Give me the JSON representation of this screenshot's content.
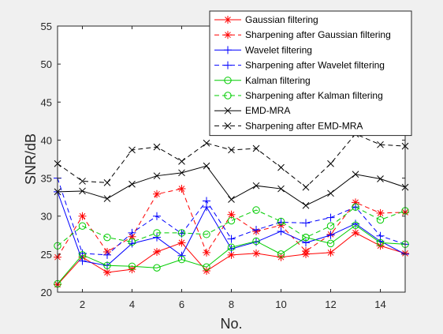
{
  "chart_data": {
    "type": "line",
    "xlabel": "No.",
    "ylabel": "SNR/dB",
    "x": [
      1,
      2,
      3,
      4,
      5,
      6,
      7,
      8,
      9,
      10,
      11,
      12,
      13,
      14,
      15
    ],
    "xlim": [
      1,
      15
    ],
    "ylim": [
      20,
      55
    ],
    "xticks": [
      2,
      4,
      6,
      8,
      10,
      12,
      14
    ],
    "yticks": [
      20,
      25,
      30,
      35,
      40,
      45,
      50,
      55
    ],
    "grid": false,
    "legend_position": "top-right",
    "series": [
      {
        "name": "Gaussian filtering",
        "color": "#ff0000",
        "marker": "asterisk",
        "dashed": false,
        "values": [
          21.0,
          24.6,
          22.6,
          23.0,
          25.3,
          26.5,
          22.8,
          24.9,
          25.1,
          24.6,
          25.0,
          25.2,
          27.8,
          26.1,
          25.1
        ]
      },
      {
        "name": "Sharpening after Gaussian filtering",
        "color": "#ff0000",
        "marker": "asterisk",
        "dashed": true,
        "values": [
          24.6,
          30.0,
          25.3,
          27.3,
          32.9,
          33.6,
          25.2,
          30.2,
          28.0,
          28.8,
          25.4,
          27.6,
          31.8,
          30.4,
          30.5
        ]
      },
      {
        "name": "Wavelet filtering",
        "color": "#0000ff",
        "marker": "plus",
        "dashed": false,
        "values": [
          33.2,
          24.1,
          23.5,
          26.4,
          27.2,
          24.8,
          31.2,
          25.7,
          26.6,
          28.0,
          26.5,
          27.5,
          29.0,
          26.7,
          25.0
        ]
      },
      {
        "name": "Sharpening after Wavelet filtering",
        "color": "#0000ff",
        "marker": "plus",
        "dashed": true,
        "values": [
          35.0,
          25.1,
          24.9,
          27.8,
          30.0,
          27.7,
          32.0,
          27.0,
          28.2,
          29.2,
          29.1,
          29.8,
          31.2,
          27.4,
          26.3
        ]
      },
      {
        "name": "Kalman filtering",
        "color": "#00cc00",
        "marker": "circle",
        "dashed": false,
        "values": [
          21.1,
          24.9,
          23.5,
          23.4,
          23.2,
          24.3,
          23.3,
          25.9,
          26.7,
          25.0,
          27.2,
          26.4,
          28.8,
          26.5,
          26.3
        ]
      },
      {
        "name": "Sharpening after Kalman filtering",
        "color": "#00cc00",
        "marker": "circle",
        "dashed": true,
        "values": [
          26.1,
          28.7,
          27.2,
          26.6,
          27.8,
          27.8,
          27.6,
          29.4,
          30.8,
          29.3,
          27.2,
          28.7,
          31.2,
          29.5,
          30.7
        ]
      },
      {
        "name": "EMD-MRA",
        "color": "#000000",
        "marker": "cross",
        "dashed": false,
        "values": [
          33.2,
          33.3,
          32.3,
          34.2,
          35.3,
          35.7,
          36.6,
          32.2,
          34.0,
          33.6,
          31.4,
          33.0,
          35.5,
          34.9,
          33.8
        ]
      },
      {
        "name": "Sharpening after EMD-MRA",
        "color": "#000000",
        "marker": "cross",
        "dashed": true,
        "values": [
          36.9,
          34.6,
          34.4,
          38.7,
          39.1,
          37.2,
          39.6,
          38.7,
          38.9,
          36.4,
          33.8,
          36.9,
          40.8,
          39.4,
          39.2
        ]
      }
    ]
  }
}
